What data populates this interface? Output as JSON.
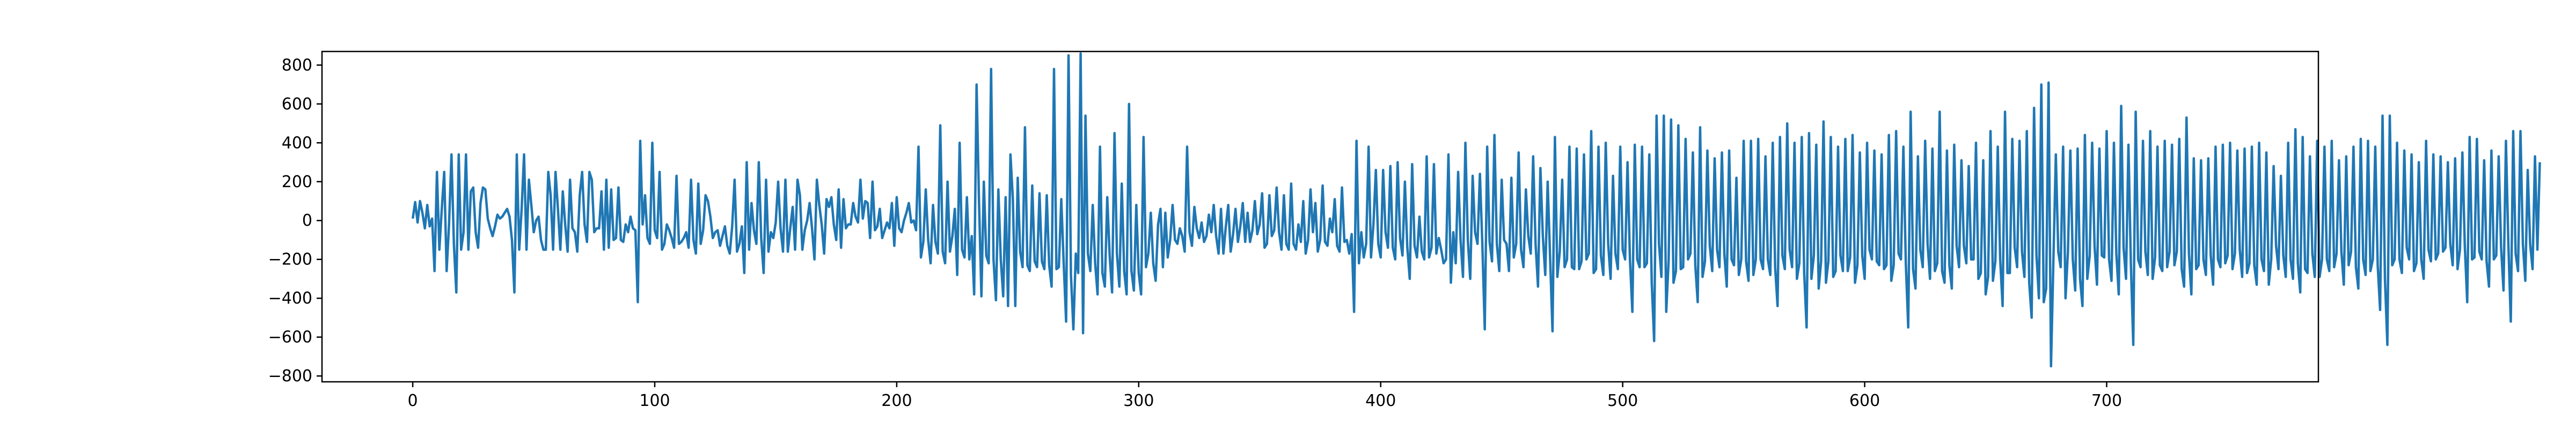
{
  "chart_data": {
    "type": "line",
    "title": "",
    "xlabel": "",
    "ylabel": "",
    "xlim": [
      -37.5,
      787.5
    ],
    "ylim": [
      -830,
      870
    ],
    "x_ticks": [
      0,
      100,
      200,
      300,
      400,
      500,
      600,
      700
    ],
    "y_ticks": [
      -800,
      -600,
      -400,
      -200,
      0,
      200,
      400,
      600,
      800
    ],
    "x_tick_labels": [
      "0",
      "100",
      "200",
      "300",
      "400",
      "500",
      "600",
      "700"
    ],
    "y_tick_labels": [
      "−800",
      "−600",
      "−400",
      "−200",
      "0",
      "200",
      "400",
      "600",
      "800"
    ],
    "grid": false,
    "legend": "none",
    "series": [
      {
        "color": "#1f77b4",
        "x_start": 0,
        "x_step": 1,
        "values": [
          10,
          95,
          -10,
          100,
          40,
          -40,
          80,
          -30,
          10,
          -260,
          250,
          -150,
          60,
          250,
          -260,
          -20,
          340,
          -120,
          -370,
          340,
          -150,
          -60,
          340,
          -150,
          150,
          170,
          -60,
          -140,
          90,
          170,
          160,
          10,
          -40,
          -80,
          -30,
          30,
          10,
          20,
          40,
          60,
          20,
          -100,
          -370,
          340,
          -150,
          60,
          340,
          -150,
          210,
          80,
          -60,
          0,
          20,
          -100,
          -150,
          -150,
          250,
          130,
          -150,
          250,
          60,
          -150,
          150,
          -20,
          -160,
          210,
          -40,
          -60,
          -160,
          130,
          250,
          -20,
          -110,
          250,
          210,
          -60,
          -40,
          -40,
          150,
          -150,
          210,
          -140,
          160,
          -100,
          -90,
          170,
          -100,
          -110,
          -20,
          -60,
          20,
          -40,
          -50,
          -420,
          410,
          -20,
          130,
          -90,
          -120,
          400,
          -50,
          -90,
          250,
          -150,
          -120,
          -20,
          -50,
          -90,
          -140,
          230,
          -120,
          -110,
          -90,
          -60,
          -140,
          210,
          -100,
          -170,
          190,
          -120,
          -50,
          130,
          100,
          20,
          -90,
          -60,
          -50,
          -130,
          -80,
          -30,
          -130,
          -170,
          -30,
          210,
          -160,
          -120,
          -30,
          -270,
          300,
          -150,
          90,
          -50,
          -120,
          300,
          -90,
          -270,
          210,
          -160,
          -60,
          -90,
          -10,
          200,
          -40,
          -160,
          210,
          -160,
          -40,
          70,
          -150,
          210,
          130,
          -150,
          -50,
          0,
          90,
          -40,
          -200,
          210,
          80,
          -20,
          -170,
          110,
          70,
          120,
          -20,
          -100,
          160,
          -140,
          110,
          -40,
          -20,
          -20,
          90,
          20,
          -10,
          210,
          10,
          100,
          90,
          -90,
          200,
          -50,
          -30,
          60,
          -90,
          -50,
          -10,
          -40,
          90,
          -130,
          120,
          -40,
          -60,
          0,
          40,
          90,
          -10,
          0,
          -50,
          380,
          -190,
          -110,
          160,
          -100,
          -220,
          80,
          -110,
          -170,
          490,
          -160,
          -220,
          200,
          -160,
          -80,
          60,
          -280,
          400,
          -150,
          -190,
          120,
          -200,
          -80,
          -380,
          700,
          100,
          -390,
          200,
          -180,
          -220,
          780,
          -200,
          -410,
          160,
          -200,
          -390,
          120,
          -440,
          340,
          110,
          -440,
          220,
          -160,
          -240,
          480,
          -230,
          -260,
          180,
          -210,
          -240,
          140,
          -210,
          -250,
          130,
          -230,
          -340,
          780,
          -250,
          -240,
          110,
          -220,
          -520,
          850,
          -280,
          -560,
          -170,
          -270,
          860,
          -580,
          540,
          -170,
          -260,
          80,
          -220,
          -380,
          380,
          -270,
          -340,
          120,
          -180,
          -370,
          450,
          -170,
          -340,
          190,
          -260,
          -380,
          600,
          -260,
          -360,
          80,
          -270,
          -380,
          430,
          -240,
          -170,
          40,
          -220,
          -310,
          -20,
          60,
          -240,
          40,
          -190,
          -100,
          80,
          -100,
          -120,
          -40,
          -80,
          -160,
          380,
          -60,
          -130,
          70,
          -40,
          -90,
          -10,
          -110,
          -80,
          30,
          -60,
          80,
          -80,
          -170,
          60,
          -170,
          -30,
          80,
          -160,
          -70,
          60,
          -110,
          -30,
          90,
          -110,
          40,
          -110,
          -50,
          100,
          -70,
          -20,
          140,
          -140,
          -120,
          130,
          -80,
          -50,
          170,
          -60,
          -150,
          130,
          -120,
          -150,
          190,
          -120,
          -150,
          -20,
          -110,
          100,
          -170,
          -100,
          160,
          -60,
          90,
          -160,
          -100,
          180,
          -110,
          -130,
          10,
          -60,
          110,
          -130,
          -160,
          170,
          -110,
          -100,
          -170,
          -70,
          -470,
          410,
          -220,
          -60,
          -190,
          -120,
          380,
          -190,
          -20,
          260,
          -120,
          -190,
          260,
          -60,
          -140,
          280,
          -140,
          -200,
          300,
          -90,
          -180,
          200,
          -140,
          -300,
          290,
          -130,
          -190,
          20,
          -160,
          -200,
          330,
          -190,
          -140,
          290,
          -170,
          -90,
          -150,
          -220,
          -200,
          340,
          -320,
          -60,
          -220,
          250,
          -100,
          -290,
          400,
          -100,
          -300,
          230,
          -60,
          -120,
          240,
          -120,
          -560,
          380,
          -110,
          -210,
          440,
          -120,
          -260,
          210,
          -100,
          -120,
          -260,
          220,
          -190,
          -120,
          350,
          -150,
          -240,
          160,
          -80,
          -170,
          330,
          -120,
          -340,
          270,
          -80,
          -280,
          200,
          -190,
          -570,
          430,
          -290,
          -160,
          210,
          -240,
          -200,
          380,
          -240,
          -250,
          370,
          -250,
          -210,
          340,
          -200,
          -170,
          460,
          -270,
          -250,
          380,
          -180,
          -280,
          400,
          -120,
          -300,
          230,
          -170,
          -250,
          380,
          -150,
          -200,
          300,
          -200,
          -470,
          390,
          -200,
          -240,
          380,
          -240,
          -220,
          340,
          -320,
          -620,
          540,
          -120,
          -290,
          540,
          -470,
          -200,
          520,
          -320,
          -260,
          490,
          -250,
          -240,
          420,
          -200,
          -170,
          350,
          -230,
          -420,
          480,
          -290,
          -210,
          360,
          -130,
          -260,
          320,
          -150,
          -240,
          350,
          -170,
          -340,
          360,
          -200,
          -230,
          220,
          -280,
          -200,
          410,
          -210,
          -310,
          410,
          -280,
          -200,
          420,
          -200,
          -250,
          330,
          -200,
          -280,
          400,
          -240,
          -440,
          430,
          -180,
          -250,
          500,
          -150,
          -240,
          400,
          -300,
          -220,
          430,
          -270,
          -550,
          450,
          -300,
          -180,
          390,
          -350,
          -210,
          510,
          -320,
          -210,
          430,
          -290,
          -260,
          380,
          -180,
          -260,
          420,
          -260,
          -190,
          440,
          -320,
          -230,
          350,
          -180,
          -300,
          400,
          -150,
          -200,
          360,
          -210,
          -230,
          340,
          -250,
          -230,
          440,
          -310,
          -230,
          460,
          -170,
          -200,
          380,
          -220,
          -550,
          560,
          -250,
          -350,
          330,
          -150,
          -240,
          410,
          -120,
          -300,
          370,
          -260,
          -220,
          560,
          -260,
          -320,
          360,
          -230,
          -350,
          390,
          -130,
          -240,
          310,
          -130,
          -220,
          280,
          -200,
          -200,
          400,
          -300,
          -270,
          310,
          -380,
          -290,
          460,
          -310,
          -210,
          380,
          -200,
          -440,
          560,
          -270,
          -270,
          420,
          -140,
          -240,
          410,
          -160,
          -290,
          460,
          -320,
          -500,
          580,
          -180,
          -400,
          700,
          -420,
          -350,
          710,
          -750,
          -200,
          340,
          -160,
          -240,
          380,
          -400,
          -160,
          360,
          -200,
          -360,
          370,
          -300,
          -440,
          440,
          -300,
          -180,
          400,
          -130,
          -330,
          370,
          -180,
          -190,
          460,
          -200,
          -310,
          400,
          -170,
          -380,
          590,
          -140,
          -300,
          390,
          -220,
          -640,
          560,
          -200,
          -240,
          410,
          -160,
          -280,
          460,
          -300,
          -190,
          380,
          -230,
          -260,
          410,
          -240,
          -160,
          390,
          -230,
          -160,
          420,
          -250,
          -340,
          530,
          -170,
          -380,
          320,
          -250,
          -230,
          310,
          -200,
          -280,
          320,
          -180,
          -330,
          380,
          -200,
          -240,
          390,
          -220,
          -180,
          400,
          -250,
          -170,
          360,
          -150,
          -290,
          370,
          -270,
          -220,
          380,
          -230,
          -330,
          400,
          -200,
          -260,
          350,
          -330,
          -200,
          280,
          -130,
          -250,
          230,
          -180,
          -290,
          400,
          -200,
          -300,
          470,
          -220,
          -370,
          430,
          -250,
          -270,
          330,
          -170,
          -290,
          410,
          -290,
          -200,
          380,
          -200,
          -260,
          410,
          -240,
          -170,
          310,
          -160,
          -330,
          330,
          -230,
          -160,
          380,
          -240,
          -350,
          420,
          -200,
          -280,
          410,
          -260,
          -200,
          380,
          -230,
          -460,
          540,
          -300,
          -640,
          540,
          -230,
          -200,
          400,
          -200,
          -270,
          360,
          -140,
          -200,
          340,
          -260,
          -220,
          300,
          -200,
          -300,
          410,
          -150,
          -210,
          340,
          -200,
          -170,
          330,
          -160,
          -140,
          300,
          -120,
          -230,
          320,
          -250,
          -150,
          350,
          -130,
          -420,
          430,
          -200,
          -190,
          420,
          -160,
          -200,
          310,
          -210,
          -340,
          360,
          -200,
          -180,
          330,
          -140,
          -360,
          410,
          -120,
          -520,
          460,
          -170,
          -260,
          460,
          -120,
          -310,
          260,
          -120,
          -250,
          330,
          -150,
          300
        ]
      }
    ]
  }
}
